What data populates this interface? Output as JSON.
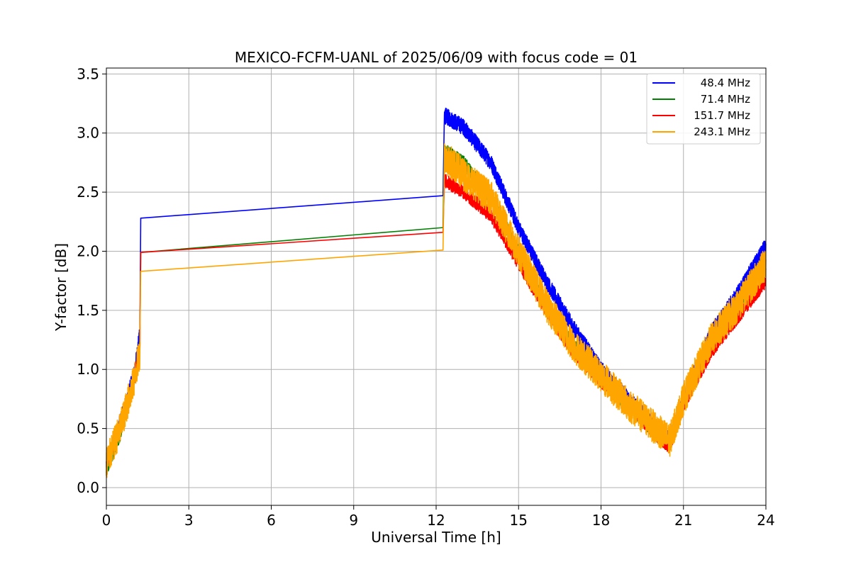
{
  "chart_data": {
    "type": "line",
    "title": "MEXICO-FCFM-UANL of 2025/06/09 with focus code = 01",
    "xlabel": "Universal Time [h]",
    "ylabel": "Y-factor [dB]",
    "xlim": [
      0,
      24
    ],
    "ylim": [
      -0.15,
      3.55
    ],
    "x_ticks": [
      0,
      3,
      6,
      9,
      12,
      15,
      18,
      21,
      24
    ],
    "y_ticks": [
      0.0,
      0.5,
      1.0,
      1.5,
      2.0,
      2.5,
      3.0,
      3.5
    ],
    "x_tick_labels": [
      "0",
      "3",
      "6",
      "9",
      "12",
      "15",
      "18",
      "21",
      "24"
    ],
    "y_tick_labels": [
      "0.0",
      "0.5",
      "1.0",
      "1.5",
      "2.0",
      "2.5",
      "3.0",
      "3.5"
    ],
    "grid": true,
    "legend_position": "top-right",
    "series": [
      {
        "name": "48.4 MHz",
        "color": "#0000ff",
        "noise": 0.07,
        "points": [
          [
            0,
            0.2
          ],
          [
            0.5,
            0.55
          ],
          [
            1.0,
            0.95
          ],
          [
            1.22,
            1.3
          ],
          [
            1.25,
            2.28
          ],
          [
            12.25,
            2.47
          ],
          [
            12.3,
            3.15
          ],
          [
            13.0,
            3.05
          ],
          [
            14.0,
            2.75
          ],
          [
            15.0,
            2.2
          ],
          [
            16.0,
            1.75
          ],
          [
            17.0,
            1.35
          ],
          [
            18.0,
            1.0
          ],
          [
            19.0,
            0.75
          ],
          [
            20.0,
            0.5
          ],
          [
            20.5,
            0.4
          ],
          [
            21.0,
            0.75
          ],
          [
            22.0,
            1.3
          ],
          [
            23.0,
            1.65
          ],
          [
            24.0,
            2.05
          ]
        ]
      },
      {
        "name": "71.4 MHz",
        "color": "#008000",
        "noise": 0.06,
        "points": [
          [
            0,
            0.15
          ],
          [
            0.5,
            0.45
          ],
          [
            1.0,
            0.9
          ],
          [
            1.22,
            1.2
          ],
          [
            1.25,
            1.99
          ],
          [
            12.25,
            2.2
          ],
          [
            12.3,
            2.85
          ],
          [
            13.0,
            2.75
          ],
          [
            14.0,
            2.45
          ],
          [
            15.0,
            2.0
          ],
          [
            16.0,
            1.55
          ],
          [
            17.0,
            1.2
          ],
          [
            18.0,
            0.9
          ],
          [
            19.0,
            0.7
          ],
          [
            20.0,
            0.45
          ],
          [
            20.5,
            0.35
          ],
          [
            21.0,
            0.7
          ],
          [
            22.0,
            1.2
          ],
          [
            23.0,
            1.55
          ],
          [
            24.0,
            1.9
          ]
        ]
      },
      {
        "name": "151.7 MHz",
        "color": "#ff0000",
        "noise": 0.06,
        "points": [
          [
            0,
            0.2
          ],
          [
            0.5,
            0.5
          ],
          [
            1.0,
            0.9
          ],
          [
            1.22,
            1.2
          ],
          [
            1.25,
            1.99
          ],
          [
            12.25,
            2.16
          ],
          [
            12.3,
            2.6
          ],
          [
            13.0,
            2.5
          ],
          [
            14.0,
            2.3
          ],
          [
            15.0,
            1.9
          ],
          [
            16.0,
            1.5
          ],
          [
            17.0,
            1.15
          ],
          [
            18.0,
            0.9
          ],
          [
            19.0,
            0.7
          ],
          [
            20.0,
            0.45
          ],
          [
            20.5,
            0.35
          ],
          [
            21.0,
            0.7
          ],
          [
            22.0,
            1.15
          ],
          [
            23.0,
            1.45
          ],
          [
            24.0,
            1.75
          ]
        ]
      },
      {
        "name": "243.1 MHz",
        "color": "#ffa500",
        "noise": 0.14,
        "points": [
          [
            0,
            0.2
          ],
          [
            0.5,
            0.5
          ],
          [
            1.0,
            0.9
          ],
          [
            1.22,
            1.15
          ],
          [
            1.25,
            1.83
          ],
          [
            12.25,
            2.01
          ],
          [
            12.3,
            2.8
          ],
          [
            13.0,
            2.65
          ],
          [
            14.0,
            2.45
          ],
          [
            15.0,
            2.0
          ],
          [
            16.0,
            1.55
          ],
          [
            17.0,
            1.2
          ],
          [
            18.0,
            0.95
          ],
          [
            19.0,
            0.7
          ],
          [
            20.0,
            0.5
          ],
          [
            20.5,
            0.4
          ],
          [
            21.0,
            0.75
          ],
          [
            22.0,
            1.25
          ],
          [
            23.0,
            1.55
          ],
          [
            24.0,
            1.9
          ]
        ]
      }
    ]
  }
}
